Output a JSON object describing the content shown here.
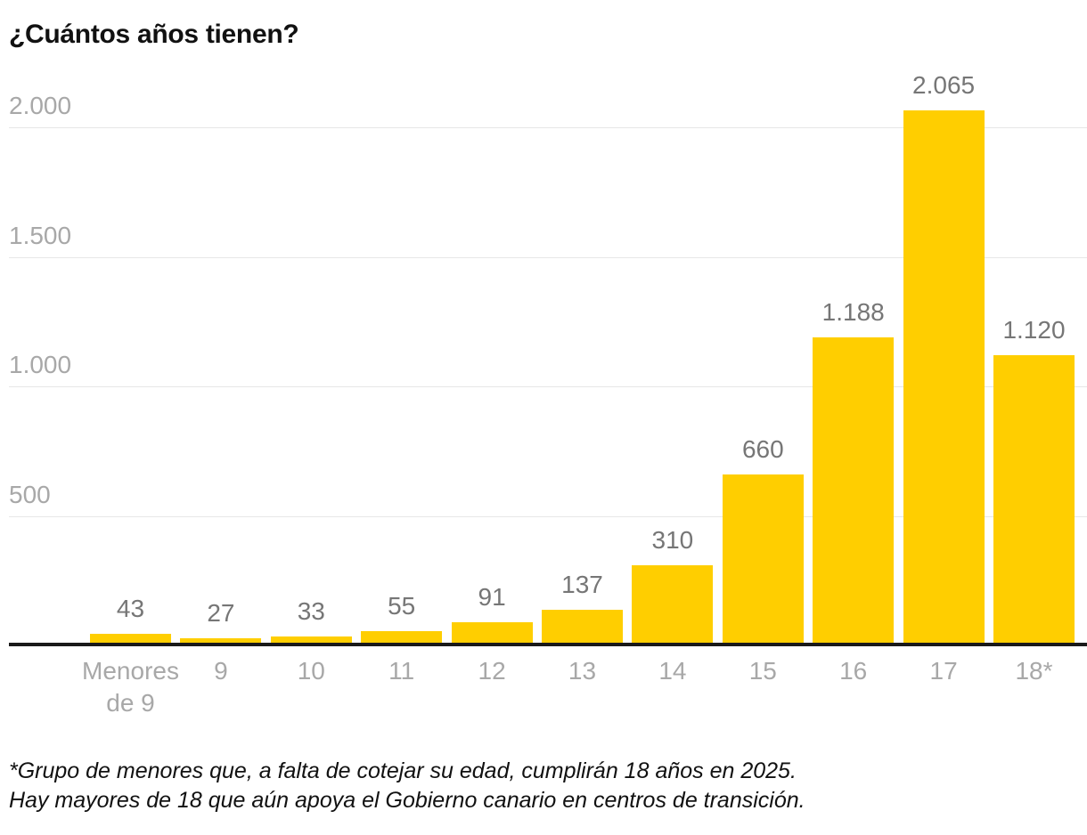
{
  "title": "¿Cuántos años tienen?",
  "footnote": {
    "line1": "*Grupo de menores que, a falta de cotejar su edad, cumplirán 18 años en 2025.",
    "line2": "Hay mayores de 18 que aún apoya el Gobierno canario en centros de transición."
  },
  "colors": {
    "bar": "#FFCE00",
    "axis_line": "#1a1a1a",
    "gridline": "#e7e7e7",
    "value_label": "#767676",
    "tick_label": "#a8a8a8",
    "title": "#111111"
  },
  "chart_data": {
    "type": "bar",
    "title": "¿Cuántos años tienen?",
    "categories": [
      "Menores de 9",
      "9",
      "10",
      "11",
      "12",
      "13",
      "14",
      "15",
      "16",
      "17",
      "18*"
    ],
    "tick_labels": [
      "Menores\nde 9",
      "9",
      "10",
      "11",
      "12",
      "13",
      "14",
      "15",
      "16",
      "17",
      "18*"
    ],
    "values": [
      43,
      27,
      33,
      55,
      91,
      137,
      310,
      660,
      1188,
      2065,
      1120
    ],
    "value_labels": [
      "43",
      "27",
      "33",
      "55",
      "91",
      "137",
      "310",
      "660",
      "1.188",
      "2.065",
      "1.120"
    ],
    "xlabel": "",
    "ylabel": "",
    "ylim": [
      0,
      2000
    ],
    "yticks": [
      500,
      1000,
      1500,
      2000
    ],
    "ytick_labels": [
      "500",
      "1.000",
      "1.500",
      "2.000"
    ],
    "grid": true,
    "legend": false,
    "bar_color": "#FFCE00"
  }
}
